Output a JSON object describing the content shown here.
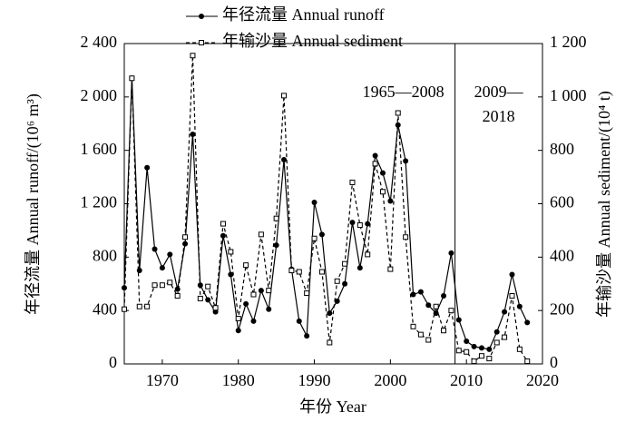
{
  "chart_data": {
    "type": "line",
    "x_label": "年份 Year",
    "y_label": "年径流量 Annual runoff/(10⁶ m³)",
    "y2_label": "年输沙量 Annual sediment/(10⁴ t)",
    "annotations": [
      "1965—2008",
      "2009—",
      "2018"
    ],
    "x": [
      1965,
      1966,
      1967,
      1968,
      1969,
      1970,
      1971,
      1972,
      1973,
      1974,
      1975,
      1976,
      1977,
      1978,
      1979,
      1980,
      1981,
      1982,
      1983,
      1984,
      1985,
      1986,
      1987,
      1988,
      1989,
      1990,
      1991,
      1992,
      1993,
      1994,
      1995,
      1996,
      1997,
      1998,
      1999,
      2000,
      2001,
      2002,
      2003,
      2004,
      2005,
      2006,
      2007,
      2008,
      2009,
      2010,
      2011,
      2012,
      2013,
      2014,
      2015,
      2016,
      2017,
      2018
    ],
    "xlim": [
      1965,
      2020
    ],
    "xticks": [
      1970,
      1980,
      1990,
      2000,
      2010,
      2020
    ],
    "ylim": [
      0,
      2400
    ],
    "yticks": [
      0,
      400,
      800,
      {
        "value": 1200,
        "label": "1 200"
      },
      {
        "value": 1600,
        "label": "1 600"
      },
      {
        "value": 2000,
        "label": "2 000"
      },
      {
        "value": 2400,
        "label": "2 400"
      }
    ],
    "y2lim": [
      0,
      1200
    ],
    "y2ticks": [
      0,
      200,
      400,
      600,
      800,
      {
        "value": 1000,
        "label": "1 000"
      },
      {
        "value": 1200,
        "label": "1 200"
      }
    ],
    "series": [
      {
        "name": "年径流量 Annual runoff",
        "color": "#000000",
        "values": [
          570,
          2140,
          700,
          1470,
          860,
          720,
          820,
          560,
          900,
          1720,
          590,
          480,
          390,
          960,
          670,
          250,
          450,
          320,
          550,
          410,
          890,
          1530,
          710,
          320,
          210,
          1210,
          970,
          380,
          470,
          600,
          1060,
          720,
          1050,
          1560,
          1430,
          1220,
          1790,
          1520,
          520,
          540,
          440,
          380,
          510,
          830,
          330,
          170,
          130,
          120,
          110,
          240,
          390,
          670,
          430,
          310
        ]
      },
      {
        "name": "年输沙量 Annual sediment",
        "color": "#000000",
        "axis": "y2",
        "values": [
          205,
          1070,
          215,
          215,
          295,
          295,
          305,
          255,
          475,
          1155,
          245,
          290,
          210,
          525,
          420,
          170,
          370,
          260,
          485,
          275,
          545,
          1005,
          350,
          345,
          265,
          470,
          345,
          80,
          310,
          375,
          680,
          520,
          410,
          750,
          645,
          355,
          940,
          475,
          140,
          110,
          90,
          215,
          125,
          200,
          50,
          45,
          10,
          30,
          20,
          80,
          100,
          255,
          55,
          10
        ]
      }
    ]
  }
}
